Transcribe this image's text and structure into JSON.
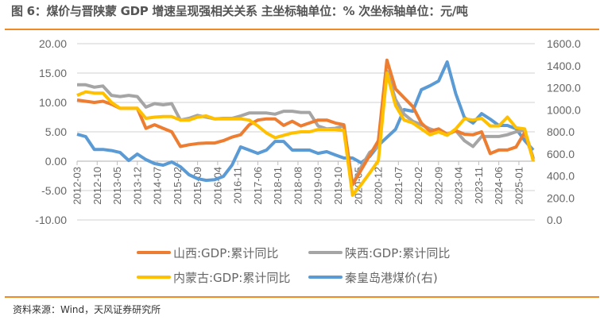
{
  "title": "图 6：煤价与晋陕蒙 GDP 增速呈现强相关关系 主坐标轴单位：% 次坐标轴单位：元/吨",
  "source": "资料来源：Wind，天风证券研究所",
  "chart_data": {
    "type": "line",
    "title": "",
    "x_tick_labels": [
      "2012-03",
      "2012-10",
      "2013-05",
      "2013-12",
      "2014-07",
      "2015-02",
      "2015-09",
      "2016-04",
      "2016-11",
      "2017-06",
      "2018-01",
      "2018-08",
      "2019-03",
      "2019-10",
      "2020-05",
      "2020-12",
      "2021-07",
      "2022-02",
      "2022-09",
      "2023-04",
      "2023-11",
      "2024-06",
      "2025-01"
    ],
    "x": [
      "2012-03",
      "2012-06",
      "2012-09",
      "2012-12",
      "2013-03",
      "2013-06",
      "2013-09",
      "2013-12",
      "2014-03",
      "2014-06",
      "2014-09",
      "2014-12",
      "2015-03",
      "2015-06",
      "2015-09",
      "2015-12",
      "2016-03",
      "2016-06",
      "2016-09",
      "2016-12",
      "2017-03",
      "2017-06",
      "2017-09",
      "2017-12",
      "2018-03",
      "2018-06",
      "2018-09",
      "2018-12",
      "2019-03",
      "2019-06",
      "2019-09",
      "2019-12",
      "2020-03",
      "2020-06",
      "2020-09",
      "2020-12",
      "2021-03",
      "2021-06",
      "2021-09",
      "2021-12",
      "2022-03",
      "2022-06",
      "2022-09",
      "2022-12",
      "2023-03",
      "2023-06",
      "2023-09",
      "2023-12",
      "2024-03",
      "2024-06",
      "2024-09",
      "2024-12",
      "2025-03",
      "2025-06"
    ],
    "y_left": {
      "range": [
        -10,
        20
      ],
      "ticks": [
        "20.00",
        "15.00",
        "10.00",
        "5.00",
        "0.00",
        "-5.00",
        "-10.00"
      ]
    },
    "y_right": {
      "range": [
        0,
        1600
      ],
      "ticks": [
        "1600.0",
        "1400.0",
        "1200.0",
        "1000.0",
        "800.0",
        "600.0",
        "400.0",
        "200.0",
        "0.0"
      ]
    },
    "grid": true,
    "legend_position": "bottom",
    "series": [
      {
        "name": "山西:GDP:累计同比",
        "axis": "left",
        "color": "#ed7d31",
        "values": [
          10.4,
          10.2,
          10.0,
          10.2,
          9.7,
          9.0,
          9.0,
          9.0,
          5.6,
          6.2,
          5.6,
          5.0,
          2.5,
          2.8,
          3.0,
          3.1,
          3.1,
          3.5,
          4.1,
          4.5,
          6.2,
          7.0,
          7.2,
          7.2,
          6.1,
          6.8,
          6.0,
          6.5,
          7.0,
          7.0,
          6.5,
          6.2,
          -4.0,
          -1.5,
          1.0,
          3.5,
          17.2,
          12.3,
          10.8,
          9.3,
          6.5,
          5.1,
          5.5,
          4.6,
          5.2,
          4.6,
          4.5,
          5.0,
          1.3,
          1.9,
          1.9,
          2.4,
          4.9,
          0.3
        ]
      },
      {
        "name": "陕西:GDP:累计同比",
        "axis": "left",
        "color": "#a5a5a5",
        "values": [
          13.0,
          13.0,
          12.6,
          12.8,
          11.2,
          11.0,
          11.2,
          11.0,
          9.2,
          9.8,
          9.6,
          9.8,
          7.0,
          7.3,
          7.8,
          7.5,
          7.2,
          7.3,
          7.3,
          7.7,
          8.2,
          8.2,
          8.2,
          8.0,
          8.5,
          8.5,
          8.3,
          8.3,
          6.0,
          5.5,
          5.6,
          6.0,
          -4.0,
          -1.0,
          1.5,
          2.5,
          15.3,
          10.5,
          8.0,
          6.8,
          6.2,
          5.5,
          5.0,
          4.5,
          5.2,
          3.5,
          2.5,
          4.2,
          4.2,
          4.2,
          4.5,
          5.0,
          5.3,
          0.5
        ]
      },
      {
        "name": "内蒙古:GDP:累计同比",
        "axis": "left",
        "color": "#ffc000",
        "values": [
          11.2,
          11.8,
          11.6,
          11.6,
          10.0,
          9.0,
          9.0,
          9.0,
          7.3,
          7.5,
          7.6,
          7.6,
          7.0,
          7.0,
          7.5,
          7.7,
          7.2,
          7.2,
          7.2,
          7.2,
          7.0,
          6.0,
          4.8,
          4.0,
          4.4,
          4.8,
          5.0,
          5.0,
          5.4,
          5.4,
          5.4,
          5.2,
          -5.8,
          -4.0,
          -2.0,
          0.1,
          15.0,
          9.5,
          7.0,
          6.5,
          5.5,
          4.5,
          5.0,
          4.4,
          5.5,
          7.2,
          7.0,
          7.3,
          6.0,
          6.0,
          7.5,
          5.7,
          5.5,
          0.0
        ]
      },
      {
        "name": "秦皇岛港煤价(右)",
        "axis": "right",
        "color": "#5b9bd5",
        "values": [
          778,
          757,
          640,
          640,
          630,
          612,
          540,
          598,
          548,
          512,
          497,
          526,
          483,
          411,
          375,
          360,
          366,
          396,
          497,
          663,
          634,
          605,
          634,
          713,
          713,
          634,
          634,
          634,
          605,
          620,
          590,
          562,
          562,
          519,
          576,
          677,
          750,
          822,
          1002,
          987,
          1182,
          1218,
          1261,
          1434,
          1146,
          930,
          879,
          965,
          915,
          858,
          858,
          829,
          721,
          634
        ]
      }
    ]
  }
}
